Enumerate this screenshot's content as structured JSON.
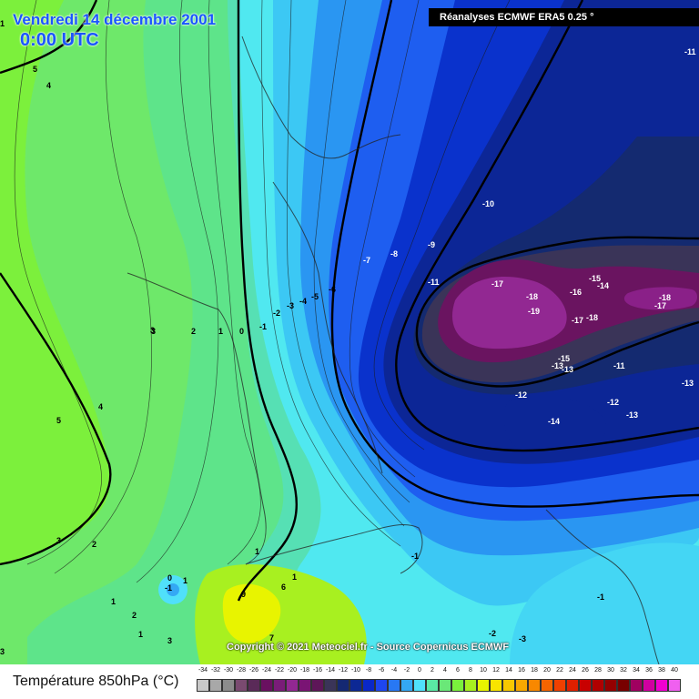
{
  "header": {
    "date": "Vendredi 14 décembre 2001",
    "time": "0:00 UTC",
    "source": "Réanalyses ECMWF ERA5 0.25 °"
  },
  "footer": {
    "copyright": "Copyright © 2021 Meteociel.fr - Source Copernicus ECMWF"
  },
  "legend": {
    "title": "Température 850hPa (°C)",
    "items": [
      {
        "label": "-34",
        "color": "#c8c8c8"
      },
      {
        "label": "-32",
        "color": "#a8a8a8"
      },
      {
        "label": "-30",
        "color": "#8c8c8c"
      },
      {
        "label": "-28",
        "color": "#7a4a70"
      },
      {
        "label": "-26",
        "color": "#5a2a58"
      },
      {
        "label": "-24",
        "color": "#6a1060"
      },
      {
        "label": "-22",
        "color": "#7a1c78"
      },
      {
        "label": "-20",
        "color": "#922892"
      },
      {
        "label": "-18",
        "color": "#7a1474"
      },
      {
        "label": "-16",
        "color": "#5e1658"
      },
      {
        "label": "-14",
        "color": "#3a3458"
      },
      {
        "label": "-12",
        "color": "#142872"
      },
      {
        "label": "-10",
        "color": "#0c2894"
      },
      {
        "label": "-8",
        "color": "#0a28c8"
      },
      {
        "label": "-6",
        "color": "#1e46f0"
      },
      {
        "label": "-4",
        "color": "#2878f4"
      },
      {
        "label": "-2",
        "color": "#34a8f4"
      },
      {
        "label": "0",
        "color": "#50e0fa"
      },
      {
        "label": "2",
        "color": "#5ae8a4"
      },
      {
        "label": "4",
        "color": "#6ae878"
      },
      {
        "label": "6",
        "color": "#7af03c"
      },
      {
        "label": "8",
        "color": "#a8f020"
      },
      {
        "label": "10",
        "color": "#e8f400"
      },
      {
        "label": "12",
        "color": "#f8e400"
      },
      {
        "label": "14",
        "color": "#f8c800"
      },
      {
        "label": "16",
        "color": "#f8a800"
      },
      {
        "label": "18",
        "color": "#f88800"
      },
      {
        "label": "20",
        "color": "#f46400"
      },
      {
        "label": "22",
        "color": "#f04000"
      },
      {
        "label": "24",
        "color": "#e02000"
      },
      {
        "label": "26",
        "color": "#c80000"
      },
      {
        "label": "28",
        "color": "#b00000"
      },
      {
        "label": "30",
        "color": "#940000"
      },
      {
        "label": "32",
        "color": "#780000"
      },
      {
        "label": "34",
        "color": "#a00060"
      },
      {
        "label": "36",
        "color": "#d000a0"
      },
      {
        "label": "38",
        "color": "#f000d0"
      },
      {
        "label": "40",
        "color": "#f060f0"
      }
    ]
  },
  "map": {
    "contour_labels": [
      "5",
      "4",
      "3",
      "2",
      "1",
      "0",
      "-1",
      "-2",
      "-3",
      "-4",
      "-5",
      "-6",
      "-7",
      "-8",
      "-9",
      "-10",
      "-11",
      "-11",
      "-17",
      "-18",
      "-19",
      "-16",
      "-15",
      "-14",
      "-17",
      "-18",
      "-18",
      "-17",
      "-15",
      "-13",
      "-13",
      "-11",
      "-12",
      "-12",
      "-13",
      "-13",
      "-14",
      "3",
      "2",
      "1",
      "0",
      "-1",
      "1",
      "2",
      "1",
      "3",
      "3",
      "9",
      "6",
      "7",
      "-1",
      "-1",
      "-2",
      "-3",
      "5",
      "4",
      "3",
      "1",
      "1",
      "1"
    ]
  }
}
